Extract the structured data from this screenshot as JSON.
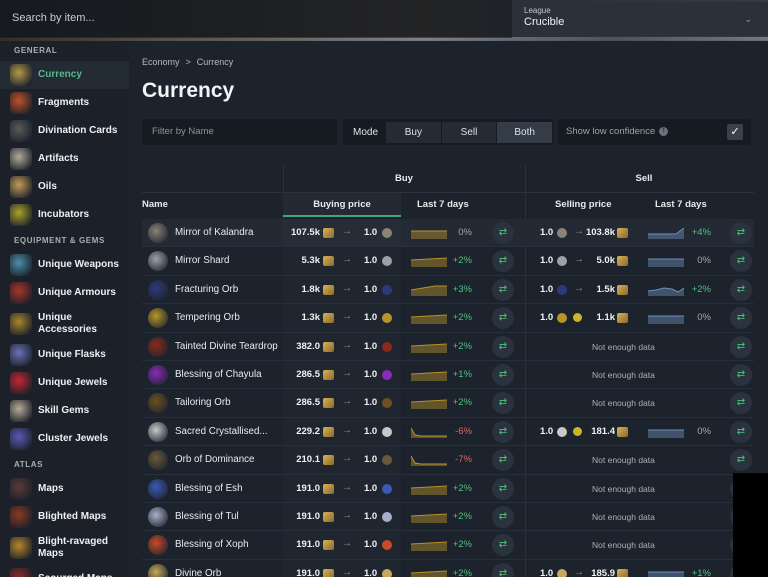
{
  "topbar": {
    "search_placeholder": "Search by item...",
    "league_label": "League",
    "league_value": "Crucible"
  },
  "sidebar": {
    "sections": [
      {
        "title": "GENERAL",
        "items": [
          {
            "label": "Currency",
            "icon": "currency-icon",
            "active": true,
            "color": "#b59a4a"
          },
          {
            "label": "Fragments",
            "icon": "fragments-icon",
            "color": "#c0512a"
          },
          {
            "label": "Divination Cards",
            "icon": "divination-card-icon",
            "color": "#5b5a58"
          },
          {
            "label": "Artifacts",
            "icon": "artifacts-icon",
            "color": "#b3a99a"
          },
          {
            "label": "Oils",
            "icon": "oils-icon",
            "color": "#c49a5a"
          },
          {
            "label": "Incubators",
            "icon": "incubators-icon",
            "color": "#a8a22a"
          }
        ]
      },
      {
        "title": "EQUIPMENT & GEMS",
        "items": [
          {
            "label": "Unique Weapons",
            "icon": "unique-weapons-icon",
            "color": "#4b8fa8"
          },
          {
            "label": "Unique Armours",
            "icon": "unique-armours-icon",
            "color": "#a8342a"
          },
          {
            "label": "Unique Accessories",
            "icon": "unique-accessories-icon",
            "color": "#a8872a",
            "two_line": true
          },
          {
            "label": "Unique Flasks",
            "icon": "unique-flasks-icon",
            "color": "#6a72b8"
          },
          {
            "label": "Unique Jewels",
            "icon": "unique-jewels-icon",
            "color": "#c2282f"
          },
          {
            "label": "Skill Gems",
            "icon": "skill-gems-icon",
            "color": "#b7aa98"
          },
          {
            "label": "Cluster Jewels",
            "icon": "cluster-jewels-icon",
            "color": "#5a5ab8"
          }
        ]
      },
      {
        "title": "ATLAS",
        "items": [
          {
            "label": "Maps",
            "icon": "maps-icon",
            "color": "#5b3a38"
          },
          {
            "label": "Blighted Maps",
            "icon": "blighted-maps-icon",
            "color": "#8a3a22"
          },
          {
            "label": "Blight-ravaged Maps",
            "icon": "blight-ravaged-maps-icon",
            "color": "#b8862a",
            "two_line": true
          },
          {
            "label": "Scourged Maps",
            "icon": "scourged-maps-icon",
            "color": "#8a2a2a"
          }
        ]
      }
    ]
  },
  "main": {
    "breadcrumb": [
      "Economy",
      ">",
      "Currency"
    ],
    "title": "Currency",
    "filter_placeholder": "Filter by Name",
    "mode_label": "Mode",
    "mode_options": [
      "Buy",
      "Sell",
      "Both"
    ],
    "mode_selected": "Both",
    "low_confidence_label": "Show low confidence",
    "low_confidence_checked": true,
    "table": {
      "group_headers": {
        "buy": "Buy",
        "sell": "Sell"
      },
      "columns": {
        "name": "Name",
        "buying_price": "Buying price",
        "buy_last7": "Last 7 days",
        "selling_price": "Selling price",
        "sell_last7": "Last 7 days"
      },
      "no_data_text": "Not enough data",
      "rows": [
        {
          "name": "Mirror of Kalandra",
          "icon_color": "#8a8378",
          "buy_price": "107.5k",
          "buy_qty": "1.0",
          "buy_change": "0%",
          "buy_trend": "neu",
          "buy_spark": "flat",
          "sell_qty": "1.0",
          "sell_price": "103.8k",
          "sell_change": "+4%",
          "sell_trend": "pos",
          "sell_spark": "uptick",
          "sell_sep": "arrow"
        },
        {
          "name": "Mirror Shard",
          "icon_color": "#9aa2aa",
          "buy_price": "5.3k",
          "buy_qty": "1.0",
          "buy_change": "+2%",
          "buy_trend": "pos",
          "buy_spark": "rise",
          "sell_qty": "1.0",
          "sell_price": "5.0k",
          "sell_change": "0%",
          "sell_trend": "neu",
          "sell_spark": "flat",
          "sell_sep": "arrow"
        },
        {
          "name": "Fracturing Orb",
          "icon_color": "#2d3a7a",
          "buy_price": "1.8k",
          "buy_qty": "1.0",
          "buy_change": "+3%",
          "buy_trend": "pos",
          "buy_spark": "step",
          "sell_qty": "1.0",
          "sell_price": "1.5k",
          "sell_change": "+2%",
          "sell_trend": "pos",
          "sell_spark": "wave",
          "sell_sep": "arrow"
        },
        {
          "name": "Tempering Orb",
          "icon_color": "#b8952a",
          "buy_price": "1.3k",
          "buy_qty": "1.0",
          "buy_change": "+2%",
          "buy_trend": "pos",
          "buy_spark": "rise",
          "sell_qty": "1.0",
          "sell_price": "1.1k",
          "sell_change": "0%",
          "sell_trend": "neu",
          "sell_spark": "flat",
          "sell_sep": "coin"
        },
        {
          "name": "Tainted Divine Teardrop",
          "icon_color": "#8a2a1a",
          "buy_price": "382.0",
          "buy_qty": "1.0",
          "buy_change": "+2%",
          "buy_trend": "pos",
          "buy_spark": "rise",
          "sell_none": true
        },
        {
          "name": "Blessing of Chayula",
          "icon_color": "#8a2ab8",
          "buy_price": "286.5",
          "buy_qty": "1.0",
          "buy_change": "+1%",
          "buy_trend": "pos",
          "buy_spark": "rise",
          "sell_none": true
        },
        {
          "name": "Tailoring Orb",
          "icon_color": "#6b5022",
          "buy_price": "286.5",
          "buy_qty": "1.0",
          "buy_change": "+2%",
          "buy_trend": "pos",
          "buy_spark": "rise",
          "sell_none": true
        },
        {
          "name": "Sacred Crystallised...",
          "icon_color": "#c8c8c8",
          "buy_price": "229.2",
          "buy_qty": "1.0",
          "buy_change": "-6%",
          "buy_trend": "neg",
          "buy_spark": "drop",
          "sell_qty": "1.0",
          "sell_price": "181.4",
          "sell_change": "0%",
          "sell_trend": "neu",
          "sell_spark": "flat",
          "sell_sep": "coin"
        },
        {
          "name": "Orb of Dominance",
          "icon_color": "#6a5a3a",
          "buy_price": "210.1",
          "buy_qty": "1.0",
          "buy_change": "-7%",
          "buy_trend": "neg",
          "buy_spark": "drop",
          "sell_none": true
        },
        {
          "name": "Blessing of Esh",
          "icon_color": "#3a5ab8",
          "buy_price": "191.0",
          "buy_qty": "1.0",
          "buy_change": "+2%",
          "buy_trend": "pos",
          "buy_spark": "rise",
          "sell_none": true
        },
        {
          "name": "Blessing of Tul",
          "icon_color": "#a8b0c8",
          "buy_price": "191.0",
          "buy_qty": "1.0",
          "buy_change": "+2%",
          "buy_trend": "pos",
          "buy_spark": "rise",
          "sell_none": true
        },
        {
          "name": "Blessing of Xoph",
          "icon_color": "#c84a2a",
          "buy_price": "191.0",
          "buy_qty": "1.0",
          "buy_change": "+2%",
          "buy_trend": "pos",
          "buy_spark": "rise",
          "sell_none": true
        },
        {
          "name": "Divine Orb",
          "icon_color": "#c8a85a",
          "buy_price": "191.0",
          "buy_qty": "1.0",
          "buy_change": "+2%",
          "buy_trend": "pos",
          "buy_spark": "rise",
          "sell_qty": "1.0",
          "sell_price": "185.9",
          "sell_change": "+1%",
          "sell_trend": "pos",
          "sell_spark": "flat",
          "sell_sep": "arrow"
        }
      ]
    }
  },
  "colors": {
    "accent_green": "#4fc17f",
    "negative_red": "#d26a6a",
    "buy_spark": "#b8922a",
    "sell_spark": "#6f8fb8"
  }
}
